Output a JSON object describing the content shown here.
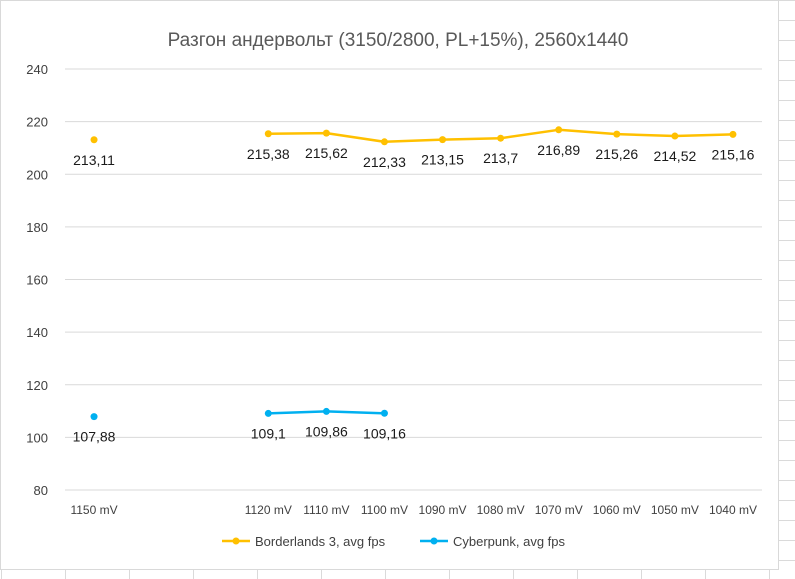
{
  "chart_data": {
    "type": "line",
    "title": "Разгон андервольт (3150/2800, PL+15%), 2560x1440",
    "xlabel": "",
    "ylabel": "",
    "categories": [
      "1150 mV",
      "",
      "",
      "1120 mV",
      "1110 mV",
      "1100 mV",
      "1090 mV",
      "1080 mV",
      "1070 mV",
      "1060 mV",
      "1050 mV",
      "1040 mV"
    ],
    "ylim": [
      80,
      240
    ],
    "yticks": [
      80,
      100,
      120,
      140,
      160,
      180,
      200,
      220,
      240
    ],
    "grid": true,
    "legend_position": "bottom",
    "series": [
      {
        "name": "Borderlands 3, avg fps",
        "color": "#FFC000",
        "values": [
          213.11,
          null,
          null,
          215.38,
          215.62,
          212.33,
          213.15,
          213.7,
          216.89,
          215.26,
          214.52,
          215.16
        ],
        "labels": [
          "213,11",
          null,
          null,
          "215,38",
          "215,62",
          "212,33",
          "213,15",
          "213,7",
          "216,89",
          "215,26",
          "214,52",
          "215,16"
        ]
      },
      {
        "name": "Cyberpunk, avg fps",
        "color": "#00B0F0",
        "values": [
          107.88,
          null,
          null,
          109.1,
          109.86,
          109.16,
          null,
          null,
          null,
          null,
          null,
          null
        ],
        "labels": [
          "107,88",
          null,
          null,
          "109,1",
          "109,86",
          "109,16",
          null,
          null,
          null,
          null,
          null,
          null
        ]
      }
    ]
  }
}
